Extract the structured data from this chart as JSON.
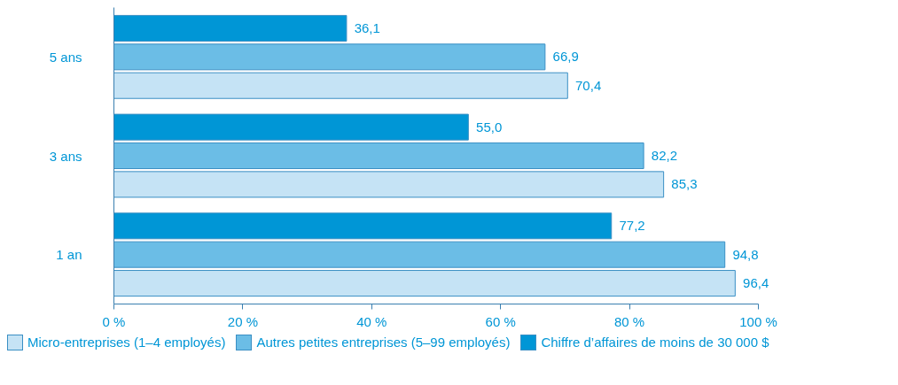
{
  "chart_data": {
    "type": "bar",
    "orientation": "horizontal",
    "categories": [
      "5 ans",
      "3 ans",
      "1 an"
    ],
    "series": [
      {
        "name": "Micro-entreprises (1–4 employés)",
        "color": "#c5e3f5",
        "values": [
          70.4,
          85.3,
          96.4
        ],
        "value_labels": [
          "70,4",
          "85,3",
          "96,4"
        ]
      },
      {
        "name": "Autres petites entreprises (5–99 employés)",
        "color": "#6bbde6",
        "values": [
          66.9,
          82.2,
          94.8
        ],
        "value_labels": [
          "66,9",
          "82,2",
          "94,8"
        ]
      },
      {
        "name": "Chiffre d’affaires de moins de 30 000 $",
        "color": "#0096d6",
        "values": [
          36.1,
          55.0,
          77.2
        ],
        "value_labels": [
          "36,1",
          "55,0",
          "77,2"
        ]
      }
    ],
    "xlim": [
      0,
      100
    ],
    "xticks": [
      {
        "value": 0,
        "label": "0 %"
      },
      {
        "value": 20,
        "label": "20 %"
      },
      {
        "value": 40,
        "label": "40 %"
      },
      {
        "value": 60,
        "label": "60 %"
      },
      {
        "value": 80,
        "label": "80 %"
      },
      {
        "value": 100,
        "label": "100 %"
      }
    ],
    "grid": false,
    "legend": "bottom"
  }
}
